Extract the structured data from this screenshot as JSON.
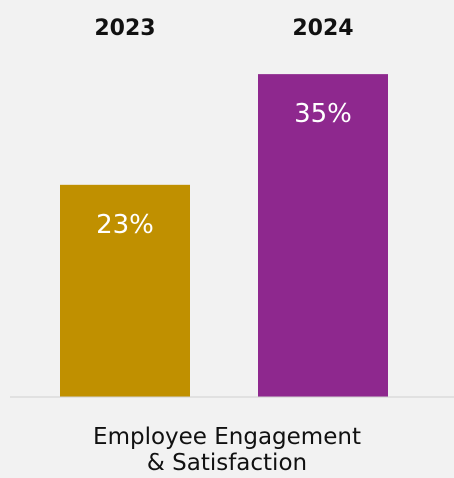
{
  "chart_data": {
    "type": "bar",
    "categories": [
      "2023",
      "2024"
    ],
    "values": [
      23,
      35
    ],
    "value_labels": [
      "23%",
      "35%"
    ],
    "colors": [
      "#c09000",
      "#8e288e"
    ],
    "xlabel_lines": [
      "Employee Engagement",
      "& Satisfaction"
    ],
    "ylim": [
      0,
      40
    ],
    "grid": false
  }
}
